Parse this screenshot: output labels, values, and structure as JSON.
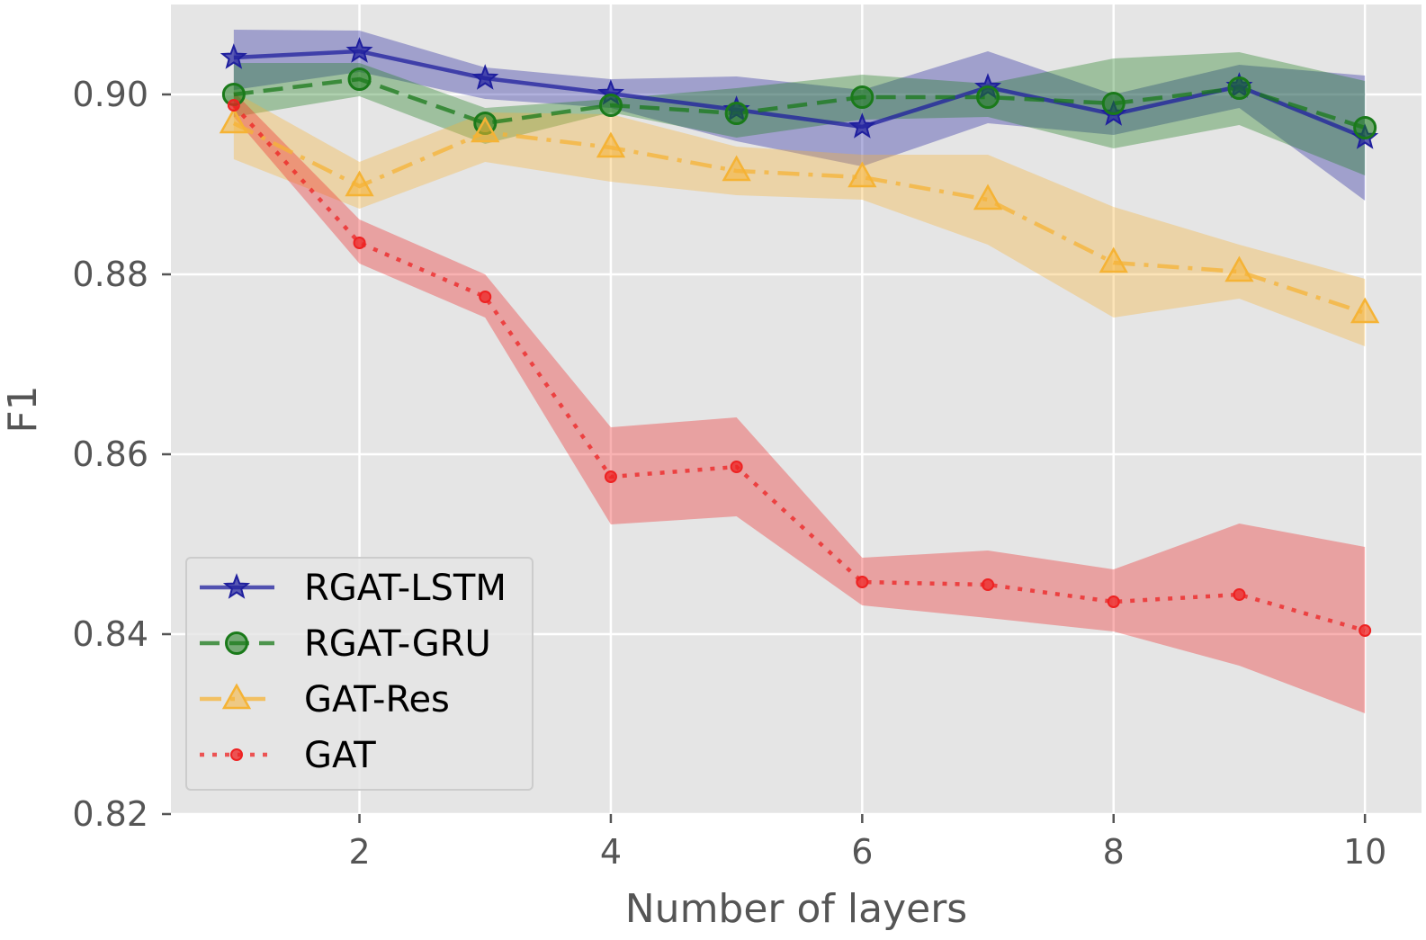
{
  "chart_data": {
    "type": "line",
    "xlabel": "Number of layers",
    "ylabel": "F1",
    "xlim": [
      0.5,
      10.45
    ],
    "ylim": [
      0.82,
      0.91
    ],
    "xticks": [
      2,
      4,
      6,
      8,
      10
    ],
    "xtick_labels": [
      "2",
      "4",
      "6",
      "8",
      "10"
    ],
    "yticks": [
      0.82,
      0.84,
      0.86,
      0.88,
      0.9
    ],
    "ytick_labels": [
      "0.82",
      "0.84",
      "0.86",
      "0.88",
      "0.90"
    ],
    "grid": true,
    "legend_position": "lower-left",
    "x": [
      1,
      2,
      3,
      4,
      5,
      6,
      7,
      8,
      9,
      10
    ],
    "series": [
      {
        "name": "RGAT-LSTM",
        "color": "#1f1f9e",
        "line_style": "solid",
        "marker": "star",
        "values": [
          0.9041,
          0.9048,
          0.9018,
          0.9001,
          0.8983,
          0.8964,
          0.9008,
          0.8978,
          0.9009,
          0.8952
        ],
        "lower": [
          0.9005,
          0.9025,
          0.8995,
          0.8985,
          0.8948,
          0.892,
          0.8968,
          0.8955,
          0.8985,
          0.8882
        ],
        "upper": [
          0.9072,
          0.9071,
          0.903,
          0.9017,
          0.902,
          0.9005,
          0.9048,
          0.9,
          0.9033,
          0.9021
        ]
      },
      {
        "name": "RGAT-GRU",
        "color": "#1a7a1a",
        "line_style": "dashed",
        "marker": "circle",
        "values": [
          0.9,
          0.9017,
          0.8968,
          0.8988,
          0.8979,
          0.8997,
          0.8997,
          0.899,
          0.9007,
          0.8963
        ],
        "lower": [
          0.8975,
          0.8998,
          0.8945,
          0.898,
          0.8952,
          0.8972,
          0.8975,
          0.894,
          0.8966,
          0.891
        ],
        "upper": [
          0.9035,
          0.9035,
          0.8985,
          0.8995,
          0.9007,
          0.9022,
          0.9012,
          0.904,
          0.9047,
          0.9015
        ]
      },
      {
        "name": "GAT-Res",
        "color": "#f5b335",
        "line_style": "dashdot",
        "marker": "triangle",
        "values": [
          0.8968,
          0.8898,
          0.8958,
          0.8941,
          0.8915,
          0.8908,
          0.8883,
          0.8813,
          0.8803,
          0.8757
        ],
        "lower": [
          0.8928,
          0.8873,
          0.8925,
          0.8903,
          0.8888,
          0.8883,
          0.8833,
          0.8752,
          0.8773,
          0.872
        ],
        "upper": [
          0.9003,
          0.8925,
          0.898,
          0.8978,
          0.8942,
          0.8933,
          0.8933,
          0.8875,
          0.8833,
          0.8795
        ]
      },
      {
        "name": "GAT",
        "color": "#ee2222",
        "line_style": "dotted",
        "marker": "dot",
        "values": [
          0.8988,
          0.8835,
          0.8775,
          0.8575,
          0.8586,
          0.8458,
          0.8455,
          0.8436,
          0.8444,
          0.8404
        ],
        "lower": [
          0.8975,
          0.8812,
          0.8752,
          0.8522,
          0.8531,
          0.8432,
          0.8418,
          0.8403,
          0.8365,
          0.8312
        ],
        "upper": [
          0.9003,
          0.8861,
          0.88,
          0.863,
          0.8641,
          0.8485,
          0.8493,
          0.8472,
          0.8523,
          0.8497
        ]
      }
    ]
  }
}
